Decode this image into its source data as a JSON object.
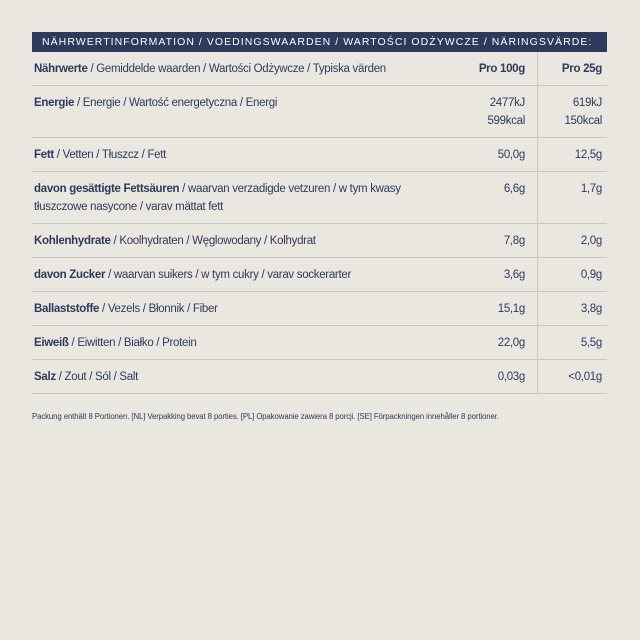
{
  "title": "NÄHRWERTINFORMATION / VOEDINGSWAARDEN / WARTOŚCI ODŻYWCZE / NÄRINGSVÄRDE:",
  "table": {
    "header": {
      "name_de": "Nährwerte",
      "name_other": "/ Gemiddelde waarden / Wartości Odżywcze / Typiska värden",
      "col_100g": "Pro 100g",
      "col_25g": "Pro 25g"
    },
    "rows": [
      {
        "name_de": "Energie",
        "name_other": "/ Energie / Wartość energetyczna / Energi",
        "per_100g": [
          "2477kJ",
          "599kcal"
        ],
        "per_25g": [
          "619kJ",
          "150kcal"
        ]
      },
      {
        "name_de": "Fett",
        "name_other": "/ Vetten / Tłuszcz / Fett",
        "per_100g": [
          "50,0g"
        ],
        "per_25g": [
          "12,5g"
        ]
      },
      {
        "name_de": "davon gesättigte Fettsäuren",
        "name_other": "/ waarvan verzadigde vetzuren / w tym kwasy tłuszczowe nasycone / varav mättat fett",
        "per_100g": [
          "6,6g"
        ],
        "per_25g": [
          "1,7g"
        ]
      },
      {
        "name_de": "Kohlenhydrate",
        "name_other": "/ Koolhydraten / Węglowodany / Kolhydrat",
        "per_100g": [
          "7,8g"
        ],
        "per_25g": [
          "2,0g"
        ]
      },
      {
        "name_de": "davon Zucker",
        "name_other": "/ waarvan suikers / w tym cukry / varav sockerarter",
        "per_100g": [
          "3,6g"
        ],
        "per_25g": [
          "0,9g"
        ]
      },
      {
        "name_de": "Ballaststoffe",
        "name_other": "/ Vezels / Błonnik / Fiber",
        "per_100g": [
          "15,1g"
        ],
        "per_25g": [
          "3,8g"
        ]
      },
      {
        "name_de": "Eiweiß",
        "name_other": "/ Eiwitten / Białko / Protein",
        "per_100g": [
          "22,0g"
        ],
        "per_25g": [
          "5,5g"
        ]
      },
      {
        "name_de": "Salz",
        "name_other": "/ Zout / Sól / Salt",
        "per_100g": [
          "0,03g"
        ],
        "per_25g": [
          "<0,01g"
        ]
      }
    ]
  },
  "footer_note": "Packung enthält 8 Portionen. [NL] Verpakking bevat 8 porties. [PL] Opakowanie zawiera 8 porcji. [SE] Förpackningen innehåller 8 portioner.",
  "colors": {
    "background": "#eae7e1",
    "navy": "#2e3a5b",
    "rule": "#c9c6c1",
    "title_text": "#ffffff"
  }
}
